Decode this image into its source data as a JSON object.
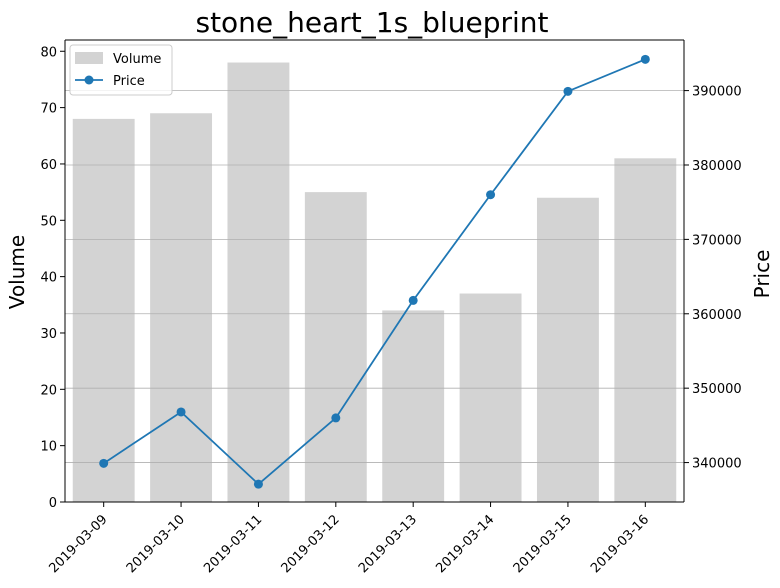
{
  "chart_data": {
    "type": "bar",
    "title": "stone_heart_1s_blueprint",
    "xlabel": "",
    "ylabel": "Volume",
    "y2label": "Price",
    "categories": [
      "2019-03-09",
      "2019-03-10",
      "2019-03-11",
      "2019-03-12",
      "2019-03-13",
      "2019-03-14",
      "2019-03-15",
      "2019-03-16"
    ],
    "series": [
      {
        "name": "Volume",
        "type": "bar",
        "axis": "left",
        "color": "#d3d3d3",
        "values": [
          68,
          69,
          78,
          55,
          34,
          37,
          54,
          61
        ]
      },
      {
        "name": "Price",
        "type": "line",
        "axis": "right",
        "color": "#1f77b4",
        "marker": "circle",
        "values": [
          339900,
          346800,
          337100,
          346000,
          361800,
          376000,
          389900,
          394200
        ]
      }
    ],
    "ylim": [
      0,
      82
    ],
    "y2lim": [
      334700,
      396800
    ],
    "yticks": [
      0,
      10,
      20,
      30,
      40,
      50,
      60,
      70,
      80
    ],
    "y2ticks": [
      340000,
      350000,
      360000,
      370000,
      380000,
      390000
    ],
    "grid": "horizontal, right axis",
    "legend_position": "top-left"
  }
}
